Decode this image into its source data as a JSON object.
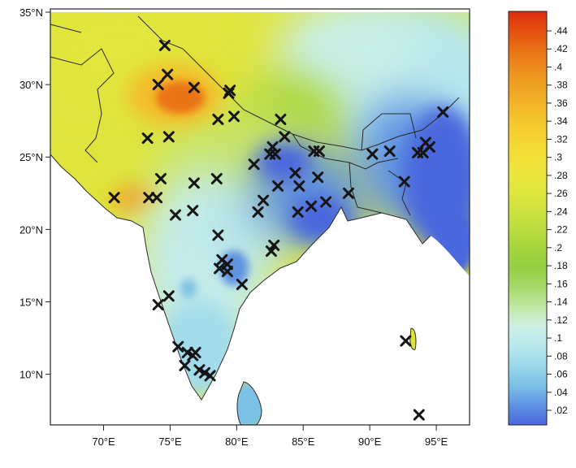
{
  "map": {
    "lat_labels": [
      "35°N",
      "30°N",
      "25°N",
      "20°N",
      "15°N",
      "10°N"
    ],
    "lon_labels": [
      "70°E",
      "75°E",
      "80°E",
      "85°E",
      "90°E",
      "95°E"
    ],
    "extent": {
      "lon": [
        66,
        97.5
      ],
      "lat": [
        6.5,
        35
      ]
    },
    "stations": [
      [
        74.6,
        32.7
      ],
      [
        74.1,
        30.0
      ],
      [
        74.8,
        30.7
      ],
      [
        76.8,
        29.8
      ],
      [
        79.5,
        29.6
      ],
      [
        79.4,
        29.4
      ],
      [
        79.8,
        27.8
      ],
      [
        78.6,
        27.6
      ],
      [
        73.3,
        26.3
      ],
      [
        74.9,
        26.4
      ],
      [
        83.3,
        27.6
      ],
      [
        83.6,
        26.4
      ],
      [
        82.7,
        25.7
      ],
      [
        82.5,
        25.2
      ],
      [
        82.9,
        25.2
      ],
      [
        85.8,
        25.4
      ],
      [
        86.2,
        25.4
      ],
      [
        81.3,
        24.5
      ],
      [
        84.4,
        23.9
      ],
      [
        84.7,
        23.0
      ],
      [
        86.1,
        23.6
      ],
      [
        83.1,
        23.0
      ],
      [
        78.5,
        23.5
      ],
      [
        74.3,
        23.5
      ],
      [
        76.8,
        23.2
      ],
      [
        70.8,
        22.2
      ],
      [
        73.4,
        22.2
      ],
      [
        74.0,
        22.2
      ],
      [
        82.0,
        22.0
      ],
      [
        81.6,
        21.2
      ],
      [
        84.6,
        21.2
      ],
      [
        85.6,
        21.6
      ],
      [
        86.7,
        21.9
      ],
      [
        88.4,
        22.5
      ],
      [
        76.7,
        21.3
      ],
      [
        75.4,
        21.0
      ],
      [
        78.6,
        19.6
      ],
      [
        82.6,
        18.5
      ],
      [
        82.8,
        18.9
      ],
      [
        78.9,
        17.9
      ],
      [
        79.3,
        17.6
      ],
      [
        78.7,
        17.3
      ],
      [
        79.3,
        17.1
      ],
      [
        80.4,
        16.2
      ],
      [
        74.9,
        15.4
      ],
      [
        74.1,
        14.8
      ],
      [
        75.6,
        11.9
      ],
      [
        76.3,
        11.5
      ],
      [
        76.7,
        11.3
      ],
      [
        76.9,
        11.5
      ],
      [
        76.1,
        10.6
      ],
      [
        77.2,
        10.3
      ],
      [
        77.6,
        10.1
      ],
      [
        78.0,
        9.9
      ],
      [
        90.2,
        25.2
      ],
      [
        91.5,
        25.4
      ],
      [
        93.6,
        25.3
      ],
      [
        94.2,
        26.0
      ],
      [
        94.5,
        25.7
      ],
      [
        94.0,
        25.3
      ],
      [
        95.5,
        28.1
      ],
      [
        92.6,
        23.3
      ],
      [
        92.7,
        12.3
      ],
      [
        93.7,
        7.2
      ]
    ]
  },
  "colorbar": {
    "ticks": [
      ".44",
      ".42",
      ".4",
      ".38",
      ".36",
      ".34",
      ".32",
      ".3",
      ".28",
      ".26",
      ".24",
      ".22",
      ".2",
      ".18",
      ".16",
      ".14",
      ".12",
      ".1",
      ".08",
      ".06",
      ".04",
      ".02"
    ],
    "colors": [
      "#dd2a0c",
      "#e5510f",
      "#ea7316",
      "#ee8f1e",
      "#f1a624",
      "#f4bc2a",
      "#f6cd30",
      "#f4dc34",
      "#eee43a",
      "#e2e63d",
      "#d1e33f",
      "#bcdd3f",
      "#a6d53c",
      "#93cf42",
      "#a7da6a",
      "#c1e7a3",
      "#d0f0e6",
      "#b7e8ee",
      "#9ad8ea",
      "#7cc1e6",
      "#5f93e2",
      "#4a68dd"
    ]
  }
}
